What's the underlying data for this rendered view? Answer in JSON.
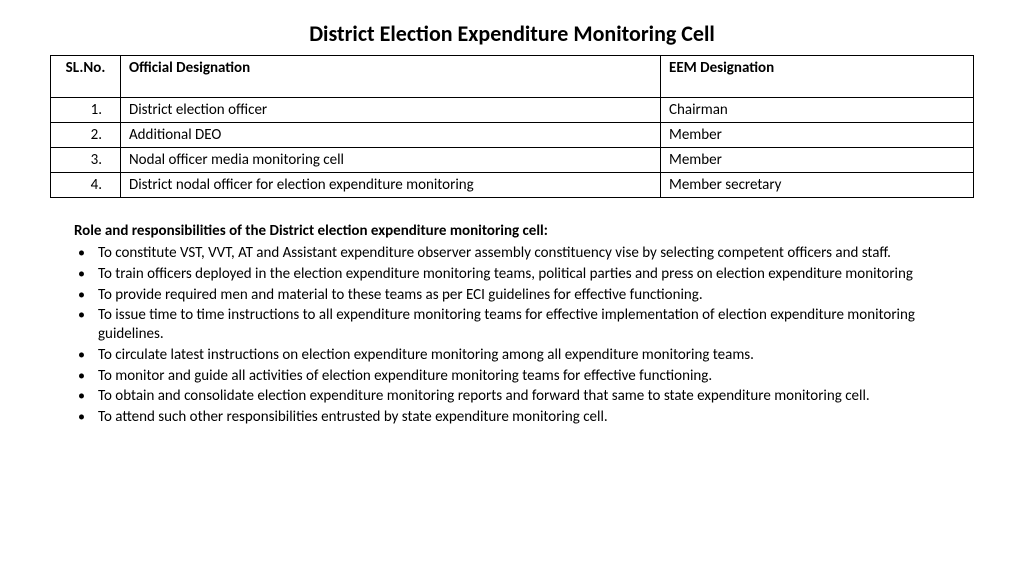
{
  "title": "District Election Expenditure Monitoring Cell",
  "table": {
    "headers": {
      "sl": "SL.No.",
      "off": "Official Designation",
      "eem": "EEM Designation"
    },
    "rows": [
      {
        "sl": "1.",
        "off": "District election officer",
        "eem": "Chairman"
      },
      {
        "sl": "2.",
        "off": "Additional DEO",
        "eem": "Member"
      },
      {
        "sl": "3.",
        "off": "Nodal officer media monitoring cell",
        "eem": "Member"
      },
      {
        "sl": "4.",
        "off": "District nodal officer for election expenditure monitoring",
        "eem": "Member secretary"
      }
    ]
  },
  "subhead": "Role and responsibilities of the District election expenditure monitoring cell:",
  "bullets": [
    "To constitute VST, VVT, AT and Assistant expenditure observer assembly constituency vise by selecting competent officers and staff.",
    "To train officers deployed in the election expenditure monitoring teams, political parties and press on election expenditure monitoring",
    "To provide required men and material to these teams as per ECI guidelines for effective functioning.",
    "To issue time to time instructions to all expenditure monitoring teams for effective implementation of election expenditure monitoring guidelines.",
    "To circulate latest instructions on election expenditure monitoring among all expenditure monitoring teams.",
    "To monitor and guide all activities of election expenditure monitoring teams for effective functioning.",
    "To obtain and consolidate election expenditure monitoring reports and forward that same to state expenditure monitoring cell.",
    "To attend such other responsibilities entrusted by state expenditure monitoring cell."
  ]
}
